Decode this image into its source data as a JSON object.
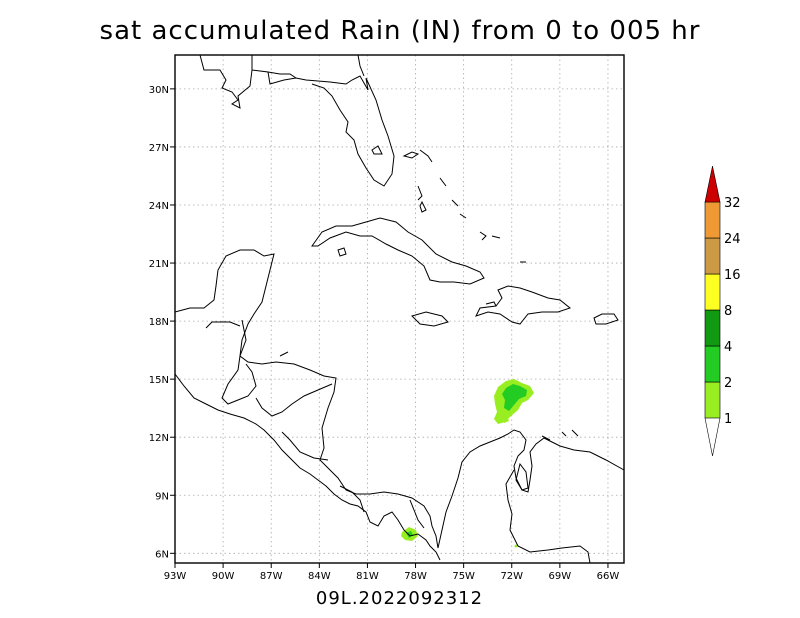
{
  "title": "sat accumulated Rain (IN) from 0 to 005 hr",
  "footer": "09L.2022092312",
  "map": {
    "lon_range": [
      -93,
      -65
    ],
    "lat_range": [
      5.5,
      31.75
    ],
    "lon_ticks": [
      {
        "value": -93,
        "label": "93W"
      },
      {
        "value": -90,
        "label": "90W"
      },
      {
        "value": -87,
        "label": "87W"
      },
      {
        "value": -84,
        "label": "84W"
      },
      {
        "value": -81,
        "label": "81W"
      },
      {
        "value": -78,
        "label": "78W"
      },
      {
        "value": -75,
        "label": "75W"
      },
      {
        "value": -72,
        "label": "72W"
      },
      {
        "value": -69,
        "label": "69W"
      },
      {
        "value": -66,
        "label": "66W"
      }
    ],
    "lat_ticks": [
      {
        "value": 6,
        "label": "6N"
      },
      {
        "value": 9,
        "label": "9N"
      },
      {
        "value": 12,
        "label": "12N"
      },
      {
        "value": 15,
        "label": "15N"
      },
      {
        "value": 18,
        "label": "18N"
      },
      {
        "value": 21,
        "label": "21N"
      },
      {
        "value": 24,
        "label": "24N"
      },
      {
        "value": 27,
        "label": "27N"
      },
      {
        "value": 30,
        "label": "30N"
      }
    ],
    "grid": "dotted",
    "colorbar": {
      "levels": [
        {
          "label": "1",
          "color": "#99ee22"
        },
        {
          "label": "2",
          "color": "#22cc22"
        },
        {
          "label": "4",
          "color": "#119911"
        },
        {
          "label": "8",
          "color": "#ffff22"
        },
        {
          "label": "16",
          "color": "#cc9944"
        },
        {
          "label": "24",
          "color": "#ee9933"
        },
        {
          "label": "32",
          "color": "#cc0000"
        }
      ],
      "top_color": "#cc0000"
    },
    "rain_areas": [
      {
        "name": "rain-area-east",
        "center_lon": -72.4,
        "center_lat": 14.0,
        "level": "1-2"
      },
      {
        "name": "rain-area-panama",
        "center_lon": -78.6,
        "center_lat": 7.0,
        "level": "1-2"
      }
    ]
  }
}
